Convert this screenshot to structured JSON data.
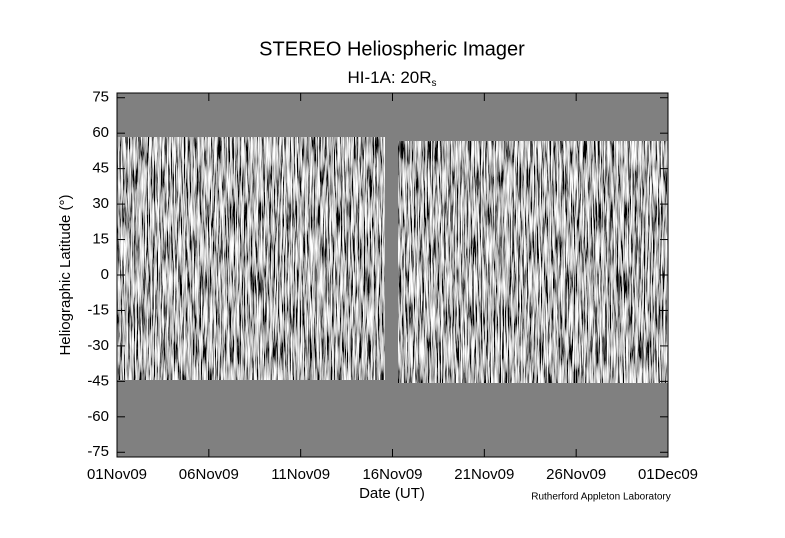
{
  "chart_data": {
    "type": "image",
    "title": "STEREO Heliospheric Imager",
    "subtitle": {
      "text": "HI-1A: 20R",
      "subscript": "s"
    },
    "x_label": "Date (UT)",
    "y_label": "Heliographic Latitude (°)",
    "credit": "Rutherford Appleton Laboratory",
    "xlim": [
      "2009-11-01",
      "2009-12-01"
    ],
    "xticks": [
      {
        "value": "2009-11-01",
        "label": "01Nov09"
      },
      {
        "value": "2009-11-06",
        "label": "06Nov09"
      },
      {
        "value": "2009-11-11",
        "label": "11Nov09"
      },
      {
        "value": "2009-11-16",
        "label": "16Nov09"
      },
      {
        "value": "2009-11-21",
        "label": "21Nov09"
      },
      {
        "value": "2009-11-26",
        "label": "26Nov09"
      },
      {
        "value": "2009-12-01",
        "label": "01Dec09"
      }
    ],
    "ylim": [
      -77,
      77
    ],
    "yticks": [
      -75,
      -60,
      -45,
      -30,
      -15,
      0,
      15,
      30,
      45,
      60,
      75
    ]
  }
}
